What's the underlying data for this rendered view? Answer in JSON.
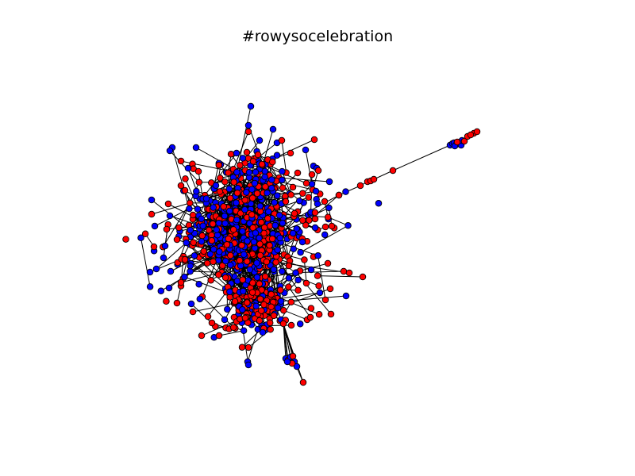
{
  "title": "#rowysocelebration",
  "graph": {
    "type": "network",
    "node_colors": {
      "primary": "#ff0000",
      "secondary": "#0000ff"
    },
    "node_stroke": "#000000",
    "edge_color": "#000000"
  }
}
